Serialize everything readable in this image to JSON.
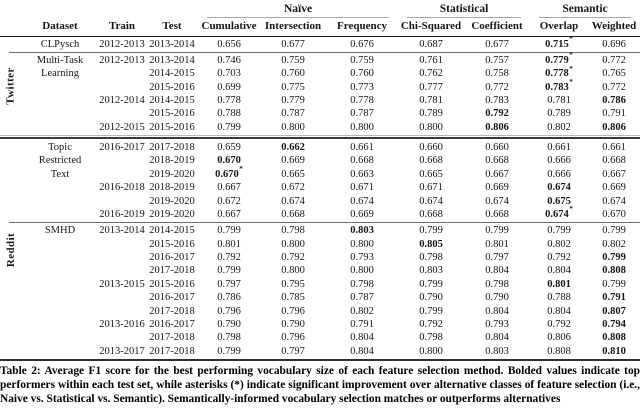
{
  "table": {
    "col_groups": [
      {
        "label": "Naïve",
        "span": 3
      },
      {
        "label": "Statistical",
        "span": 2
      },
      {
        "label": "Semantic",
        "span": 2
      }
    ],
    "columns": [
      "Dataset",
      "Train",
      "Test",
      "Cumulative",
      "Intersection",
      "Frequency",
      "Chi-Squared",
      "Coefficient",
      "Overlap",
      "Weighted"
    ],
    "rule_colors": {
      "group_underline": "#a6a6a6",
      "header_rule": "#1c1c1c",
      "group_separator": "#3a3a3a",
      "bottom_rule": "#2f2f2f"
    },
    "groups": [
      {
        "platform": "Twitter",
        "datasets": [
          {
            "name": [
              "CLPysch"
            ],
            "rows": [
              {
                "train": "2012-2013",
                "test": "2013-2014",
                "values": [
                  "0.656",
                  "0.677",
                  "0.676",
                  "0.687",
                  "0.677",
                  {
                    "v": "0.715",
                    "b": true,
                    "s": true
                  },
                  "0.696"
                ]
              }
            ]
          },
          {
            "name": [
              "Multi-Task",
              "Learning"
            ],
            "rows": [
              {
                "train": "2012-2013",
                "test": "2013-2014",
                "values": [
                  "0.746",
                  "0.759",
                  "0.759",
                  "0.761",
                  "0.757",
                  {
                    "v": "0.779",
                    "b": true,
                    "s": true
                  },
                  "0.772"
                ]
              },
              {
                "train": "",
                "test": "2014-2015",
                "values": [
                  "0.703",
                  "0.760",
                  "0.760",
                  "0.762",
                  "0.758",
                  {
                    "v": "0.778",
                    "b": true,
                    "s": true
                  },
                  "0.765"
                ]
              },
              {
                "train": "",
                "test": "2015-2016",
                "values": [
                  "0.699",
                  "0.775",
                  "0.773",
                  "0.777",
                  "0.772",
                  {
                    "v": "0.783",
                    "b": true,
                    "s": true
                  },
                  "0.772"
                ]
              },
              {
                "train": "2012-2014",
                "test": "2014-2015",
                "values": [
                  "0.778",
                  "0.779",
                  "0.778",
                  "0.781",
                  "0.783",
                  "0.781",
                  {
                    "v": "0.786",
                    "b": true
                  }
                ]
              },
              {
                "train": "",
                "test": "2015-2016",
                "values": [
                  "0.788",
                  "0.787",
                  "0.787",
                  "0.789",
                  {
                    "v": "0.792",
                    "b": true
                  },
                  "0.789",
                  "0.791"
                ]
              },
              {
                "train": "2012-2015",
                "test": "2015-2016",
                "values": [
                  "0.799",
                  "0.800",
                  "0.800",
                  "0.800",
                  {
                    "v": "0.806",
                    "b": true
                  },
                  "0.802",
                  {
                    "v": "0.806",
                    "b": true
                  }
                ]
              }
            ]
          }
        ]
      },
      {
        "platform": "Reddit",
        "datasets": [
          {
            "name": [
              "Topic",
              "Restricted",
              "Text"
            ],
            "rows": [
              {
                "train": "2016-2017",
                "test": "2017-2018",
                "values": [
                  "0.659",
                  {
                    "v": "0.662",
                    "b": true
                  },
                  "0.661",
                  "0.660",
                  "0.660",
                  "0.661",
                  "0.661"
                ]
              },
              {
                "train": "",
                "test": "2018-2019",
                "values": [
                  {
                    "v": "0.670",
                    "b": true
                  },
                  "0.669",
                  "0.668",
                  "0.668",
                  "0.668",
                  "0.666",
                  "0.668"
                ]
              },
              {
                "train": "",
                "test": "2019-2020",
                "values": [
                  {
                    "v": "0.670",
                    "b": true,
                    "s": true
                  },
                  "0.665",
                  "0.663",
                  "0.665",
                  "0.667",
                  "0.666",
                  "0.667"
                ]
              },
              {
                "train": "2016-2018",
                "test": "2018-2019",
                "values": [
                  "0.667",
                  "0.672",
                  "0.671",
                  "0.671",
                  "0.669",
                  {
                    "v": "0.674",
                    "b": true
                  },
                  "0.669"
                ]
              },
              {
                "train": "",
                "test": "2019-2020",
                "values": [
                  "0.672",
                  "0.674",
                  "0.674",
                  "0.674",
                  "0.674",
                  {
                    "v": "0.675",
                    "b": true
                  },
                  "0.674"
                ]
              },
              {
                "train": "2016-2019",
                "test": "2019-2020",
                "values": [
                  "0.667",
                  "0.668",
                  "0.669",
                  "0.668",
                  "0.668",
                  {
                    "v": "0.674",
                    "b": true,
                    "s": true
                  },
                  "0.670"
                ]
              }
            ]
          },
          {
            "name": [
              "SMHD"
            ],
            "rows": [
              {
                "train": "2013-2014",
                "test": "2014-2015",
                "values": [
                  "0.799",
                  "0.798",
                  {
                    "v": "0.803",
                    "b": true
                  },
                  "0.799",
                  "0.799",
                  "0.799",
                  "0.799"
                ]
              },
              {
                "train": "",
                "test": "2015-2016",
                "values": [
                  "0.801",
                  "0.800",
                  "0.800",
                  {
                    "v": "0.805",
                    "b": true
                  },
                  "0.801",
                  "0.802",
                  "0.802"
                ]
              },
              {
                "train": "",
                "test": "2016-2017",
                "values": [
                  "0.792",
                  "0.792",
                  "0.793",
                  "0.798",
                  "0.797",
                  "0.792",
                  {
                    "v": "0.799",
                    "b": true
                  }
                ]
              },
              {
                "train": "",
                "test": "2017-2018",
                "values": [
                  "0.799",
                  "0.800",
                  "0.800",
                  "0.803",
                  "0.804",
                  "0.804",
                  {
                    "v": "0.808",
                    "b": true
                  }
                ]
              },
              {
                "train": "2013-2015",
                "test": "2015-2016",
                "values": [
                  "0.797",
                  "0.795",
                  "0.798",
                  "0.799",
                  "0.798",
                  {
                    "v": "0.801",
                    "b": true
                  },
                  "0.799"
                ]
              },
              {
                "train": "",
                "test": "2016-2017",
                "values": [
                  "0.786",
                  "0.785",
                  "0.787",
                  "0.790",
                  "0.790",
                  "0.788",
                  {
                    "v": "0.791",
                    "b": true
                  }
                ]
              },
              {
                "train": "",
                "test": "2017-2018",
                "values": [
                  "0.796",
                  "0.796",
                  "0.802",
                  "0.799",
                  "0.804",
                  "0.804",
                  {
                    "v": "0.807",
                    "b": true
                  }
                ]
              },
              {
                "train": "2013-2016",
                "test": "2016-2017",
                "values": [
                  "0.790",
                  "0.790",
                  "0.791",
                  "0.792",
                  "0.793",
                  "0.792",
                  {
                    "v": "0.794",
                    "b": true
                  }
                ]
              },
              {
                "train": "",
                "test": "2017-2018",
                "values": [
                  "0.798",
                  "0.796",
                  "0.804",
                  "0.798",
                  "0.804",
                  "0.806",
                  {
                    "v": "0.808",
                    "b": true
                  }
                ]
              },
              {
                "train": "2013-2017",
                "test": "2017-2018",
                "values": [
                  "0.799",
                  "0.797",
                  "0.804",
                  "0.800",
                  "0.803",
                  "0.808",
                  {
                    "v": "0.810",
                    "b": true
                  }
                ]
              }
            ]
          }
        ]
      }
    ]
  },
  "caption": {
    "text": "Table 2: Average F1 score for the best performing vocabulary size of each feature selection method. Bolded values indicate top performers within each test set, while asterisks (*) indicate significant improvement over alternative classes of feature selection (i.e., Naive vs. Statistical vs. Semantic). Semantically-informed vocabulary selection matches or outperforms alternatives"
  }
}
